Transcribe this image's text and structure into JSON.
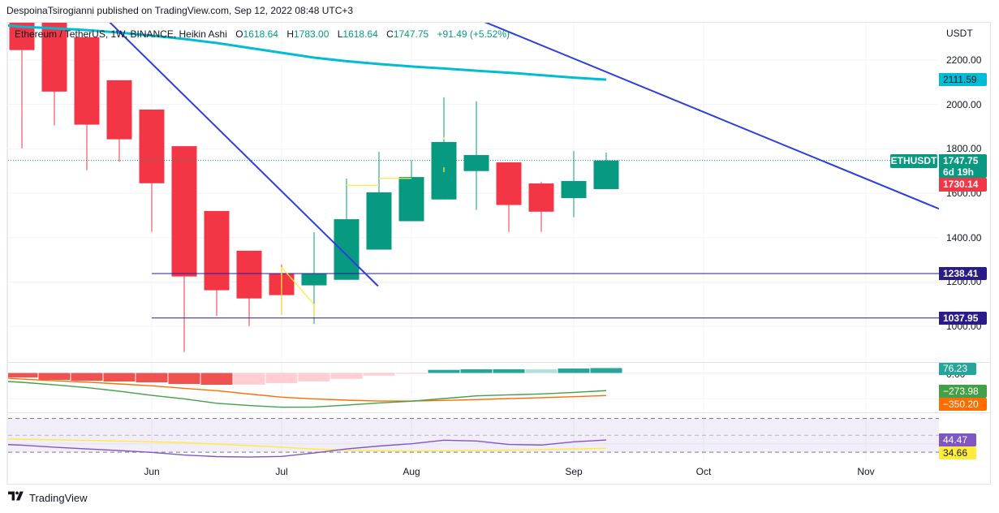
{
  "header": {
    "published": "DespoinaTsirogianni published on TradingView.com, Sep 12, 2022 08:48 UTC+3"
  },
  "legend": {
    "symbol": "Ethereum / TetherUS, 1W, BINANCE, Heikin Ashi",
    "o_label": "O",
    "open": "1618.64",
    "h_label": "H",
    "high": "1783.00",
    "l_label": "L",
    "low": "1618.64",
    "c_label": "C",
    "close": "1747.75",
    "change": "+91.49 (+5.52%)"
  },
  "price_axis": {
    "currency": "USDT",
    "macd_ticks": [
      "0.00"
    ]
  },
  "tags": {
    "ma": "2111.59",
    "symbol": "ETHUSDT",
    "last_price": "1747.75",
    "countdown": "6d 19h",
    "prev_close": "1730.14",
    "level_1": "1238.41",
    "level_2": "1037.95",
    "macd_histogram": "76.23",
    "macd_line": "−273.98",
    "macd_signal": "−350.20",
    "rsi": "44.47",
    "rsi_ma": "34.66"
  },
  "footer": {
    "brand": "TradingView"
  },
  "colors": {
    "up": "#089981",
    "down": "#F23645",
    "ma": "#00BCD4",
    "trendline": "#2B3FE0",
    "level": "#2A1B8C",
    "drawing": "#FFE83D",
    "macd_line": "#43A047",
    "signal_line": "#FF6D00",
    "rsi_line": "#7E57C2",
    "rsi_ma": "#FFEB3B",
    "hist_up": "#26A69A",
    "hist_up_light": "#B2DFDB",
    "hist_down": "#EF5350",
    "hist_down_light": "#FFCDD2",
    "grid": "#F0F3FA",
    "border": "#E0E3EB",
    "rsi_band": "rgba(126,87,194,0.10)",
    "rsi_dash": "#787B86"
  },
  "chart_data": [
    {
      "type": "candlestick",
      "title": "Ethereum / TetherUS, 1W, BINANCE, Heikin Ashi",
      "ylabel": "USDT",
      "ylim": [
        839.6,
        2368.2
      ],
      "grid": true,
      "y_ticks": [
        2200,
        2000,
        1800,
        1600,
        1400,
        1200,
        1000
      ],
      "y_tick_labels": [
        "2200.00",
        "2000.00",
        "1800.00",
        "1600.00",
        "1400.00",
        "1200.00",
        "1000.00"
      ],
      "x_tick_labels": [
        "Jun",
        "Jul",
        "Aug",
        "Sep",
        "Oct",
        "Nov"
      ],
      "x_tick_indices": [
        4,
        8,
        12,
        17,
        21,
        26
      ],
      "x": [
        "2022-05-09",
        "2022-05-16",
        "2022-05-23",
        "2022-05-30",
        "2022-06-06",
        "2022-06-13",
        "2022-06-20",
        "2022-06-27",
        "2022-07-04",
        "2022-07-11",
        "2022-07-18",
        "2022-07-25",
        "2022-08-01",
        "2022-08-08",
        "2022-08-15",
        "2022-08-22",
        "2022-08-29",
        "2022-09-05",
        "2022-09-12"
      ],
      "ohlc": [
        [
          2410,
          2450,
          1802,
          2245
        ],
        [
          2380,
          2420,
          1905,
          2058
        ],
        [
          2303,
          2303,
          1704,
          1909
        ],
        [
          2109,
          2109,
          1742,
          1843
        ],
        [
          1977,
          1977,
          1426,
          1645
        ],
        [
          1812,
          1812,
          885,
          1225
        ],
        [
          1520,
          1520,
          1046,
          1163
        ],
        [
          1341,
          1341,
          1002,
          1126
        ],
        [
          1237,
          1280,
          1052,
          1141
        ],
        [
          1185,
          1425,
          1011,
          1237
        ],
        [
          1210,
          1666,
          1210,
          1483
        ],
        [
          1346,
          1787,
          1346,
          1604
        ],
        [
          1474,
          1749,
          1474,
          1673
        ],
        [
          1572,
          2032,
          1572,
          1831
        ],
        [
          1700,
          2014,
          1525,
          1772
        ],
        [
          1739,
          1739,
          1426,
          1547
        ],
        [
          1644,
          1652,
          1426,
          1517
        ],
        [
          1578,
          1790,
          1492,
          1655
        ],
        [
          1618.64,
          1783.0,
          1618.64,
          1747.75
        ]
      ],
      "last_price": 1747.75,
      "ma": {
        "name": "MA",
        "last": 2111.59,
        "points": [
          [
            -0.45,
            2356
          ],
          [
            0,
            2350
          ],
          [
            1,
            2343
          ],
          [
            2,
            2335
          ],
          [
            3,
            2324
          ],
          [
            4,
            2310
          ],
          [
            5,
            2295
          ],
          [
            6,
            2277
          ],
          [
            7,
            2255
          ],
          [
            8,
            2233
          ],
          [
            9,
            2211
          ],
          [
            10,
            2195
          ],
          [
            11,
            2182
          ],
          [
            12,
            2171
          ],
          [
            13,
            2162
          ],
          [
            14,
            2152
          ],
          [
            15,
            2143
          ],
          [
            16,
            2132
          ],
          [
            17,
            2121
          ],
          [
            18,
            2111.59
          ]
        ]
      },
      "levels": [
        {
          "value": 1238.41,
          "from_index": 4
        },
        {
          "value": 1037.95,
          "from_index": 4
        }
      ],
      "trendlines": [
        {
          "from": [
            2.5,
            2400
          ],
          "to": [
            10.97,
            1182
          ]
        },
        {
          "from": [
            14.0,
            2387
          ],
          "to": [
            28.25,
            1530
          ]
        }
      ],
      "drawings": [
        [
          [
            8,
            1267
          ],
          [
            8,
            1052
          ]
        ],
        [
          [
            8,
            1267
          ],
          [
            9,
            1099
          ]
        ],
        [
          [
            9,
            1099
          ],
          [
            9,
            1041
          ]
        ],
        [
          [
            10,
            1636
          ],
          [
            11,
            1636
          ]
        ],
        [
          [
            11,
            1667
          ],
          [
            12,
            1667
          ]
        ],
        [
          [
            13,
            1853
          ],
          [
            13,
            1842
          ]
        ],
        [
          [
            13,
            1717
          ],
          [
            13,
            1695
          ]
        ]
      ]
    },
    {
      "type": "bar",
      "title": "MACD",
      "ylim": [
        -611.1,
        157.5
      ],
      "gridlines": [
        0,
        -400
      ],
      "histogram": [
        -69,
        -107,
        -120,
        -132,
        -145,
        -170,
        -183,
        -181,
        -158,
        -130,
        -91,
        -40,
        -6,
        48,
        57,
        58,
        56,
        69,
        76.23
      ],
      "series": [
        {
          "name": "MACD",
          "last": -273.98,
          "points": [
            [
              -0.43,
              -132
            ],
            [
              0,
              -145
            ],
            [
              1,
              -183
            ],
            [
              2,
              -227
            ],
            [
              3,
              -283
            ],
            [
              4,
              -347
            ],
            [
              5,
              -403
            ],
            [
              6,
              -470
            ],
            [
              7,
              -505
            ],
            [
              8,
              -532
            ],
            [
              9,
              -529
            ],
            [
              10,
              -498
            ],
            [
              11,
              -466
            ],
            [
              12,
              -438
            ],
            [
              13,
              -397
            ],
            [
              14,
              -355
            ],
            [
              15,
              -340
            ],
            [
              16,
              -325
            ],
            [
              17,
              -302
            ],
            [
              18,
              -273.98
            ]
          ]
        },
        {
          "name": "Signal",
          "last": -350.2,
          "points": [
            [
              -0.43,
              -82
            ],
            [
              0,
              -95
            ],
            [
              1,
              -120
            ],
            [
              2,
              -142
            ],
            [
              3,
              -170
            ],
            [
              4,
              -199
            ],
            [
              5,
              -239
            ],
            [
              6,
              -275
            ],
            [
              7,
              -326
            ],
            [
              8,
              -375
            ],
            [
              9,
              -403
            ],
            [
              10,
              -422
            ],
            [
              11,
              -435
            ],
            [
              12,
              -435
            ],
            [
              13,
              -426
            ],
            [
              14,
              -413
            ],
            [
              15,
              -397
            ],
            [
              16,
              -384
            ],
            [
              17,
              -368
            ],
            [
              18,
              -350.2
            ]
          ]
        }
      ]
    },
    {
      "type": "line",
      "title": "RSI",
      "ylim": [
        19.52,
        76.25
      ],
      "bands": {
        "upper": 70,
        "middle": 50,
        "lower": 30
      },
      "gridlines": [
        40
      ],
      "series": [
        {
          "name": "RSI",
          "last": 44.47,
          "points": [
            [
              -0.43,
              39.0
            ],
            [
              0,
              38.3
            ],
            [
              1,
              35.9
            ],
            [
              2,
              33.9
            ],
            [
              3,
              32.0
            ],
            [
              4,
              29.8
            ],
            [
              5,
              26.7
            ],
            [
              6,
              24.8
            ],
            [
              7,
              24.3
            ],
            [
              8,
              25.0
            ],
            [
              9,
              29.1
            ],
            [
              10,
              33.9
            ],
            [
              11,
              37.3
            ],
            [
              12,
              40.0
            ],
            [
              13,
              44.2
            ],
            [
              14,
              43.3
            ],
            [
              15,
              39.2
            ],
            [
              16,
              38.5
            ],
            [
              17,
              42.3
            ],
            [
              18,
              44.47
            ]
          ]
        },
        {
          "name": "RSI-based MA",
          "last": 34.66,
          "points": [
            [
              -0.43,
              45.5
            ],
            [
              0,
              45.3
            ],
            [
              1,
              44.7
            ],
            [
              2,
              44.0
            ],
            [
              3,
              43.3
            ],
            [
              4,
              42.3
            ],
            [
              5,
              41.2
            ],
            [
              6,
              39.7
            ],
            [
              7,
              37.8
            ],
            [
              8,
              35.9
            ],
            [
              9,
              33.7
            ],
            [
              10,
              32.5
            ],
            [
              11,
              31.7
            ],
            [
              12,
              31.3
            ],
            [
              13,
              31.7
            ],
            [
              14,
              32.0
            ],
            [
              15,
              32.5
            ],
            [
              16,
              33.0
            ],
            [
              17,
              33.9
            ],
            [
              18,
              34.66
            ]
          ]
        }
      ]
    }
  ]
}
